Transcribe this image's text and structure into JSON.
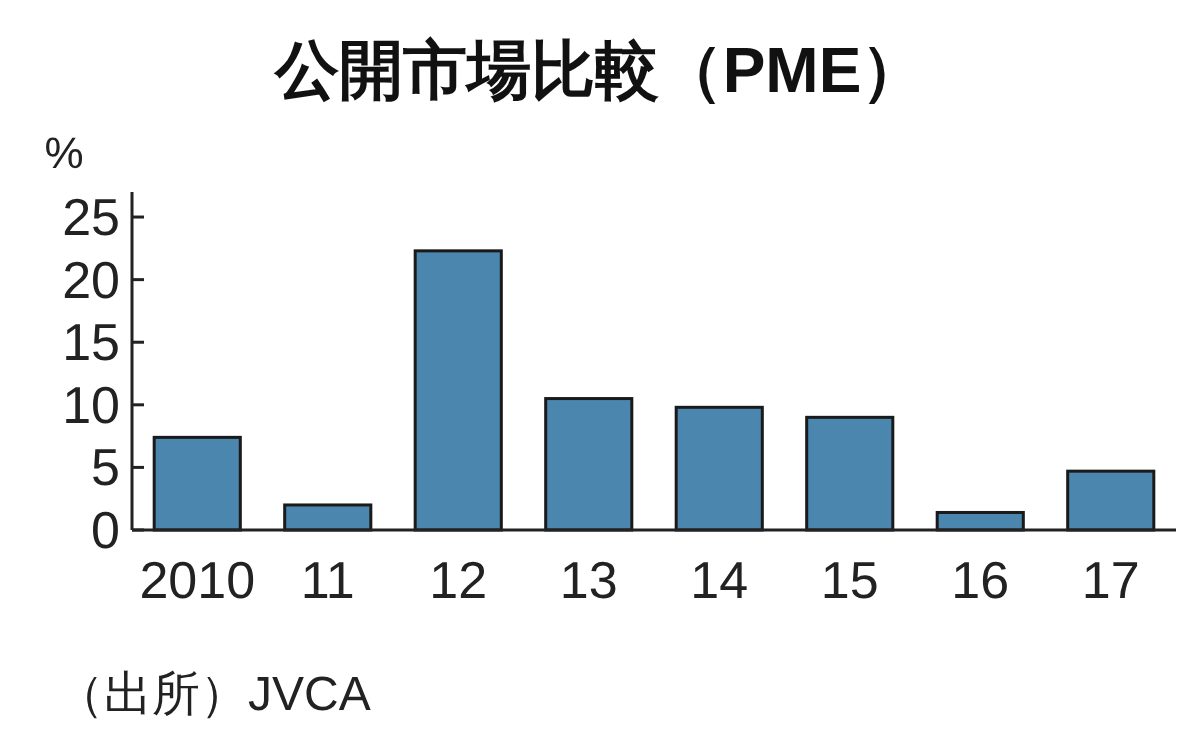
{
  "chart_data": {
    "type": "bar",
    "title": "公開市場比較（PME）",
    "ylabel": "%",
    "categories": [
      "2010",
      "11",
      "12",
      "13",
      "14",
      "15",
      "16",
      "17"
    ],
    "values": [
      7.4,
      2.0,
      22.3,
      10.5,
      9.8,
      9.0,
      1.4,
      4.7
    ],
    "color": "#4a86ad",
    "ylim": [
      0,
      27
    ],
    "yticks": [
      0,
      5,
      10,
      15,
      20,
      25
    ],
    "grid": false,
    "annotations": [
      "（出所）JVCA"
    ]
  }
}
